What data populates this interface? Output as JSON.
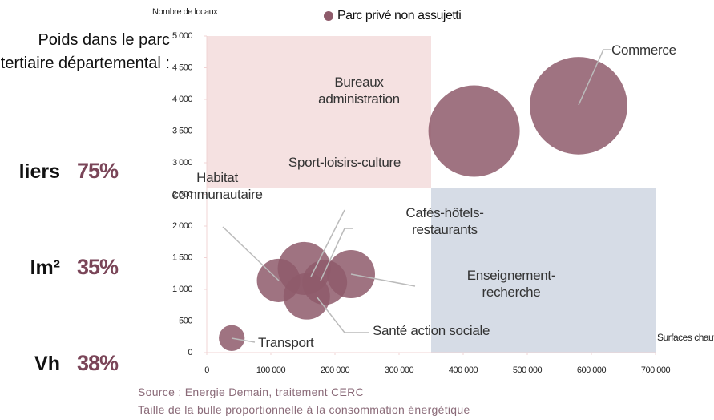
{
  "chart_data": {
    "type": "bubble",
    "y_axis_label": "Nombre de locaux",
    "x_axis_label": "Surfaces chauffées",
    "legend": "Parc privé non assujetti",
    "color": "#8e5b6b",
    "categories": [
      "Commerce",
      "Bureaux administration",
      "Sport-loisirs-culture",
      "Enseignement-recherche",
      "Santé action sociale",
      "Cafés-hôtels-restaurants",
      "Habitat communautaire",
      "Transport"
    ],
    "x": [
      580000,
      417000,
      152000,
      225000,
      156000,
      184000,
      112000,
      39000
    ],
    "values": [
      3900,
      3500,
      1330,
      1240,
      890,
      1110,
      1140,
      230
    ],
    "sizes": [
      3700,
      3250,
      1090,
      900,
      840,
      780,
      730,
      260
    ],
    "xlim": [
      0,
      700000
    ],
    "xticks": [
      0,
      {
        "value": 100000,
        "label": "100 000"
      },
      {
        "value": 200000,
        "label": "200 000"
      },
      {
        "value": 300000,
        "label": "300 000"
      },
      {
        "value": 400000,
        "label": "400 000"
      },
      {
        "value": 500000,
        "label": "500 000"
      },
      {
        "value": 600000,
        "label": "600 000"
      },
      {
        "value": 700000,
        "label": "700 000"
      }
    ],
    "ylim": [
      0,
      5000
    ],
    "yticks": [
      0,
      500,
      {
        "value": 1000,
        "label": "1 000"
      },
      {
        "value": 1500,
        "label": "1 500"
      },
      {
        "value": 2000,
        "label": "2 000"
      },
      {
        "value": 2500,
        "label": "2 500"
      },
      {
        "value": 3000,
        "label": "3 000"
      },
      {
        "value": 3500,
        "label": "3 500"
      },
      {
        "value": 4000,
        "label": "4 000"
      },
      {
        "value": 4500,
        "label": "4 500"
      },
      {
        "value": 5000,
        "label": "5 000"
      }
    ],
    "source": "Source : Energie Demain, traitement CERC",
    "note": "Taille de la bulle proportionnelle à la consommation énergétique"
  },
  "side_panel": {
    "heading": "Poids dans le parc tertiaire départemental :",
    "rows": [
      {
        "label": "liers",
        "value": "75%"
      },
      {
        "label": "lm²",
        "value": "35%"
      },
      {
        "label": "Vh",
        "value": "38%"
      }
    ]
  }
}
